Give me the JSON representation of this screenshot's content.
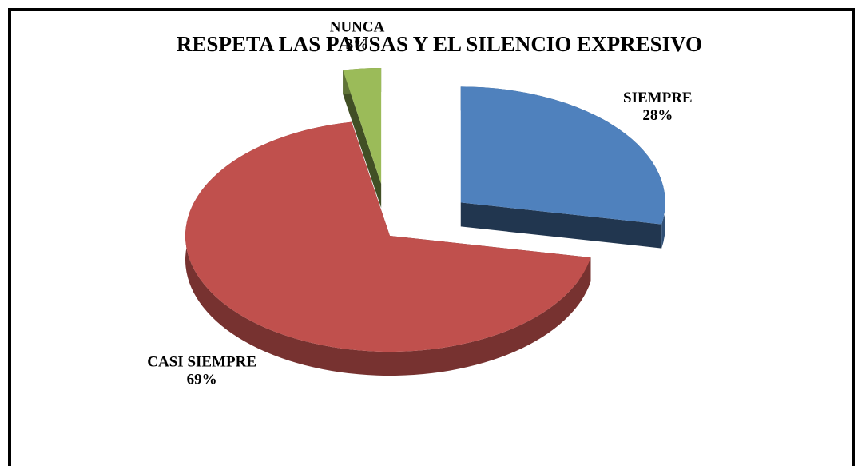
{
  "chart_data": {
    "type": "pie",
    "title": "RESPETA LAS PAUSAS Y EL SILENCIO EXPRESIVO",
    "categories": [
      "SIEMPRE",
      "CASI SIEMPRE",
      "NUNCA"
    ],
    "values": [
      28,
      69,
      3
    ],
    "value_labels": [
      "28%",
      "69%",
      "3%"
    ],
    "colors": [
      "#4f81bd",
      "#c0504d",
      "#9bbb59"
    ],
    "exploded": [
      true,
      false,
      true
    ]
  }
}
